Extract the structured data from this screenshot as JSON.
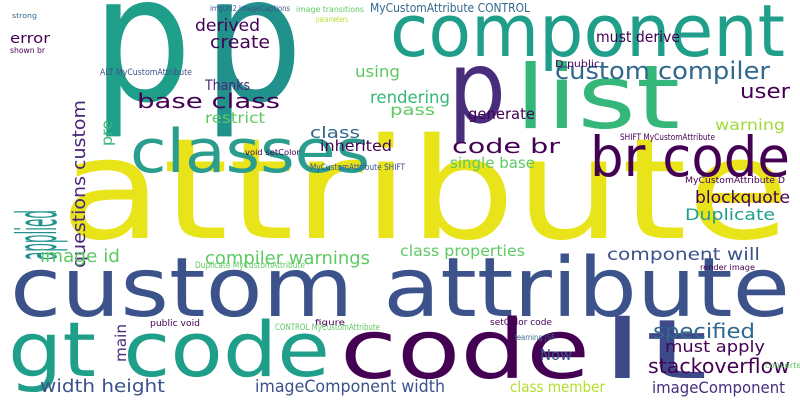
{
  "words": [
    {
      "text": "attribute"
    },
    {
      "text": "p"
    },
    {
      "text": "p"
    },
    {
      "text": "component"
    },
    {
      "text": "p"
    },
    {
      "text": "list"
    },
    {
      "text": "br code"
    },
    {
      "text": "classes"
    },
    {
      "text": "applied"
    },
    {
      "text": "custom attribute"
    },
    {
      "text": "gt code"
    },
    {
      "text": "code"
    },
    {
      "text": "lt"
    },
    {
      "text": "questions custom"
    },
    {
      "text": "custom compiler"
    },
    {
      "text": "base class"
    },
    {
      "text": "code br"
    },
    {
      "text": "user"
    },
    {
      "text": "warning"
    },
    {
      "text": "blockquote"
    },
    {
      "text": "Duplicate"
    },
    {
      "text": "stackoverflow"
    },
    {
      "text": "imageComponent"
    },
    {
      "text": "specified"
    },
    {
      "text": "must apply"
    },
    {
      "text": "component will"
    },
    {
      "text": "compiler warnings"
    },
    {
      "text": "image id"
    },
    {
      "text": "class properties"
    },
    {
      "text": "width height"
    },
    {
      "text": "imageComponent width"
    },
    {
      "text": "class member"
    },
    {
      "text": "Now"
    },
    {
      "text": "main"
    },
    {
      "text": "create"
    },
    {
      "text": "derived"
    },
    {
      "text": "error"
    },
    {
      "text": "using"
    },
    {
      "text": "rendering"
    },
    {
      "text": "pass"
    },
    {
      "text": "generate"
    },
    {
      "text": "restrict"
    },
    {
      "text": "class"
    },
    {
      "text": "inherited"
    },
    {
      "text": "single base"
    },
    {
      "text": "pre"
    },
    {
      "text": "Thanks"
    },
    {
      "text": "must derive"
    },
    {
      "text": "MyCustomAttribute CONTROL"
    },
    {
      "text": "D public"
    },
    {
      "text": "strong"
    },
    {
      "text": "shown br"
    },
    {
      "text": "image transitions"
    },
    {
      "text": "parameters"
    },
    {
      "text": "SHIFT MyCustomAttribute"
    },
    {
      "text": "MyCustomAttribute SHIFT"
    },
    {
      "text": "void setColor"
    },
    {
      "text": "public void"
    },
    {
      "text": "CONTROL MyCustomAttribute"
    },
    {
      "text": "setColor code"
    },
    {
      "text": "figure"
    },
    {
      "text": "learning JSF"
    },
    {
      "text": "render image"
    },
    {
      "text": "converter"
    },
    {
      "text": "MyCustomAttribute D"
    },
    {
      "text": "ALT MyCustomAttribute"
    },
    {
      "text": "imgUrl2 imageCaptions"
    },
    {
      "text": "Duplicate MyCustomAttribute"
    }
  ]
}
